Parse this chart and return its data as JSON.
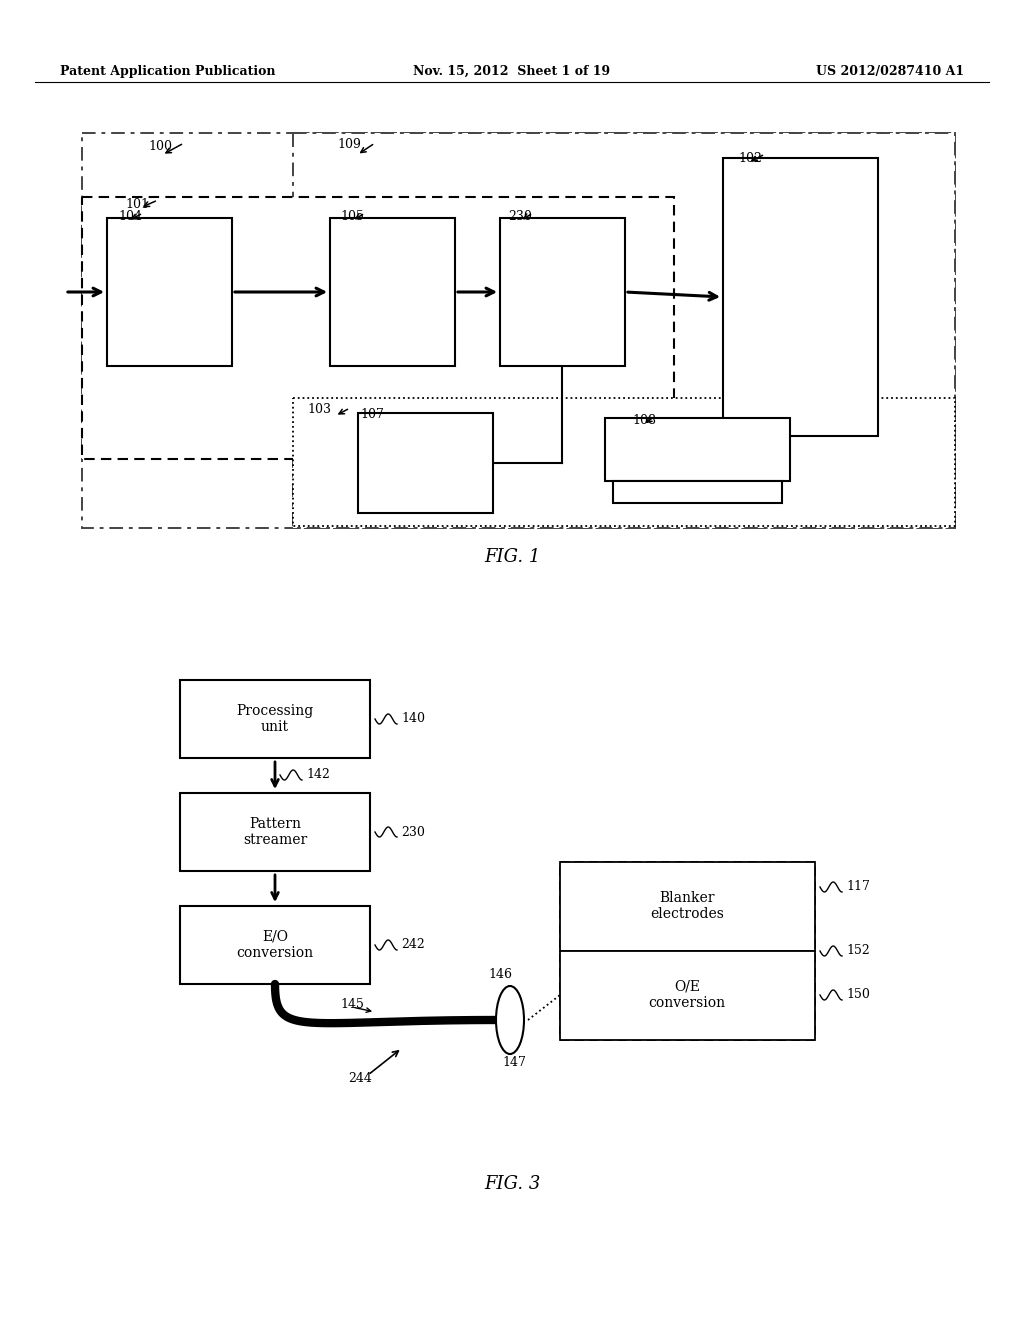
{
  "bg_color": "#ffffff",
  "header_left": "Patent Application Publication",
  "header_mid": "Nov. 15, 2012  Sheet 1 of 19",
  "header_right": "US 2012/0287410 A1",
  "fig1_label": "FIG. 1",
  "fig3_label": "FIG. 3"
}
